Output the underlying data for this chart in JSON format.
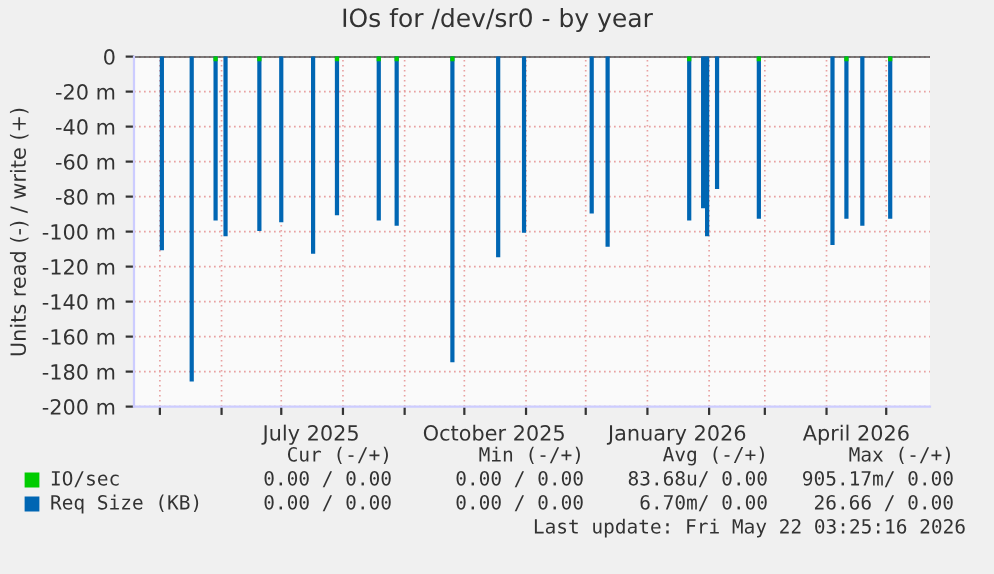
{
  "chart_data": {
    "type": "bar",
    "title": "IOs for /dev/sr0 - by year",
    "ylabel": "Units read (-) / write (+)",
    "xlim": [
      "2025-04-18",
      "2026-05-23"
    ],
    "xticks": [
      {
        "value": "2025-05-01",
        "label": null
      },
      {
        "value": "2025-06-01",
        "label": null
      },
      {
        "value": "2025-07-01",
        "label": null
      },
      {
        "value": "2025-08-01",
        "label": null
      },
      {
        "value": "2025-09-01",
        "label": null
      },
      {
        "value": "2025-10-01",
        "label": null
      },
      {
        "value": "2025-11-01",
        "label": null
      },
      {
        "value": "2025-12-01",
        "label": null
      },
      {
        "value": "2026-01-01",
        "label": null
      },
      {
        "value": "2026-02-01",
        "label": null
      },
      {
        "value": "2026-03-01",
        "label": null
      },
      {
        "value": "2026-04-01",
        "label": null
      },
      {
        "value": "2026-05-01",
        "label": null
      },
      {
        "value": "2025-07-16",
        "label": "July 2025"
      },
      {
        "value": "2025-10-16",
        "label": "October 2025"
      },
      {
        "value": "2026-01-16",
        "label": "January 2026"
      },
      {
        "value": "2026-04-16",
        "label": "April 2026"
      }
    ],
    "ylim": [
      -200,
      0
    ],
    "yticks": [
      {
        "value": -200,
        "label": "-200 m"
      },
      {
        "value": -180,
        "label": "-180 m"
      },
      {
        "value": -160,
        "label": "-160 m"
      },
      {
        "value": -140,
        "label": "-140 m"
      },
      {
        "value": -120,
        "label": "-120 m"
      },
      {
        "value": -100,
        "label": "-100 m"
      },
      {
        "value": -80,
        "label": "-80 m"
      },
      {
        "value": -60,
        "label": "-60 m"
      },
      {
        "value": -40,
        "label": "-40 m"
      },
      {
        "value": -20,
        "label": "-20 m"
      },
      0
    ],
    "grid": true,
    "legend": "bottom left",
    "series": [
      {
        "name": "IO/sec",
        "color": "#00cc00",
        "x": [
          "2025-05-29",
          "2025-06-20",
          "2025-07-29",
          "2025-08-19",
          "2025-08-28",
          "2025-09-25",
          "2026-01-22",
          "2026-02-26",
          "2026-04-11",
          "2026-05-03"
        ],
        "values": [
          -2,
          -2,
          -2,
          -2,
          -2,
          -2,
          -2,
          -2,
          -2,
          -2
        ]
      },
      {
        "name": "Req Size (KB)",
        "color": "#0066b3",
        "x": [
          "2025-05-02",
          "2025-05-17",
          "2025-05-29",
          "2025-06-03",
          "2025-06-20",
          "2025-07-01",
          "2025-07-17",
          "2025-07-29",
          "2025-08-19",
          "2025-08-28",
          "2025-09-25",
          "2025-10-18",
          "2025-10-31",
          "2025-12-04",
          "2025-12-12",
          "2026-01-22",
          "2026-01-29",
          "2026-01-31",
          "2026-02-05",
          "2026-02-26",
          "2026-04-04",
          "2026-04-11",
          "2026-04-19",
          "2026-05-03"
        ],
        "values": [
          -110,
          -185,
          -93,
          -102,
          -99,
          -94,
          -112,
          -90,
          -93,
          -96,
          -174,
          -114,
          -100,
          -89,
          -108,
          -93,
          -86,
          -102,
          -75,
          -92,
          -107,
          -92,
          -96,
          -92
        ]
      }
    ],
    "annotations": [
      "Cur (-/+)",
      "Min (-/+)",
      "Avg (-/+)",
      "Max (-/+)",
      "0.00 / 0.00",
      "0.00 / 0.00",
      "83.68u/ 0.00",
      "905.17m/ 0.00",
      "0.00 / 0.00",
      "0.00 / 0.00",
      "6.70m/ 0.00",
      "26.66 / 0.00",
      "Last update: Fri May 22 03:25:16 2026"
    ]
  }
}
